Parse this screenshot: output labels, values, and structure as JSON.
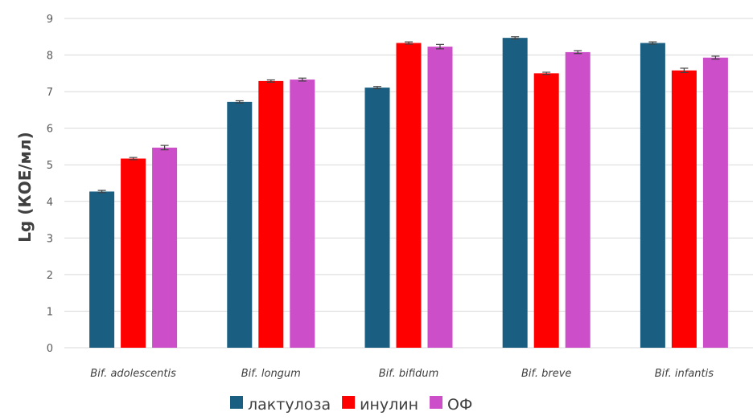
{
  "chart_data": {
    "type": "bar",
    "title": "",
    "xlabel": "",
    "ylabel": "Lg (КОЕ/мл)",
    "ylim": [
      0,
      9
    ],
    "yticks": [
      0,
      1,
      2,
      3,
      4,
      5,
      6,
      7,
      8,
      9
    ],
    "grid": true,
    "legend_position": "bottom",
    "categories": [
      "Bif. adolescentis",
      "Bif. longum",
      "Bif. bifidum",
      "Bif. breve",
      "Bif. infantis"
    ],
    "series": [
      {
        "name": "лактулоза",
        "color": "#1a5f82",
        "values": [
          4.27,
          6.72,
          7.11,
          8.47,
          8.33
        ],
        "errors": [
          0.03,
          0.03,
          0.03,
          0.03,
          0.03
        ]
      },
      {
        "name": "инулин",
        "color": "#ff0000",
        "values": [
          5.17,
          7.29,
          8.33,
          7.5,
          7.58
        ],
        "errors": [
          0.03,
          0.03,
          0.03,
          0.03,
          0.06
        ]
      },
      {
        "name": "ОФ",
        "color": "#cc4fc9",
        "values": [
          5.47,
          7.33,
          8.23,
          8.08,
          7.93
        ],
        "errors": [
          0.06,
          0.04,
          0.06,
          0.04,
          0.04
        ]
      }
    ]
  }
}
